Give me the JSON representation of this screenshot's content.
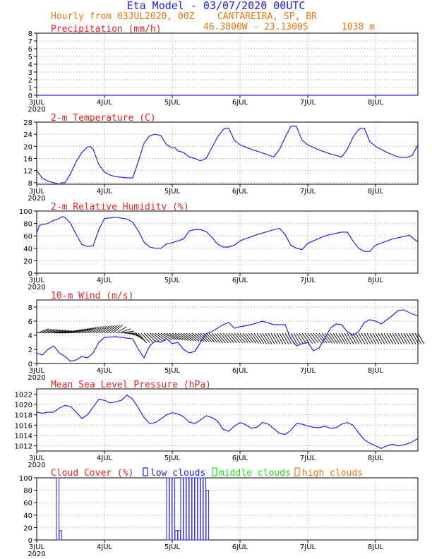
{
  "header": {
    "title": "Eta Model - 03/07/2020 00UTC",
    "subtitle": "Hourly from 03JUL2020, 00Z",
    "location": "CANTAREIRA, SP, BR",
    "coords": "46.3800W - 23.1300S",
    "elevation": "1038  m"
  },
  "colors": {
    "title": "#2020dd",
    "header": "#ee7711",
    "panel_title": "#ee2222",
    "series": "#2222ee",
    "wind": "#000000",
    "grid": "#999999",
    "low": "#2222ee",
    "middle": "#22dd22",
    "high": "#ee7711"
  },
  "x_axis": {
    "ticks": [
      {
        "hour": 0,
        "label": "3JUL",
        "year": "2020"
      },
      {
        "hour": 24,
        "label": "4JUL"
      },
      {
        "hour": 48,
        "label": "5JUL"
      },
      {
        "hour": 72,
        "label": "6JUL"
      },
      {
        "hour": 96,
        "label": "7JUL"
      },
      {
        "hour": 120,
        "label": "8JUL"
      }
    ],
    "range_hours": [
      0,
      135
    ]
  },
  "legend": {
    "cloud_title": "Cloud Cover (%)",
    "low": "low clouds",
    "middle": "middle clouds",
    "high": "high clouds"
  },
  "chart_data": [
    {
      "type": "line",
      "title": "Precipitation (mm/h)",
      "ylim": [
        0,
        8
      ],
      "yticks": [
        0,
        1,
        2,
        3,
        4,
        5,
        6,
        7,
        8
      ],
      "series": [
        {
          "name": "precipitation",
          "x": [
            0,
            135
          ],
          "values": [
            0,
            0
          ]
        }
      ]
    },
    {
      "type": "line",
      "title": "2-m Temperature (C)",
      "ylim": [
        7.5,
        28
      ],
      "yticks": [
        8,
        12,
        16,
        20,
        24,
        28
      ],
      "series": [
        {
          "name": "temperature",
          "x": [
            0,
            2,
            4,
            6,
            8,
            9,
            10,
            12,
            14,
            16,
            18,
            19,
            20,
            22,
            24,
            26,
            28,
            30,
            32,
            34,
            36,
            38,
            40,
            42,
            44,
            46,
            48,
            49,
            50,
            52,
            54,
            56,
            58,
            60,
            62,
            64,
            66,
            67,
            68,
            70,
            72,
            76,
            80,
            84,
            86,
            88,
            90,
            91,
            92,
            94,
            96,
            100,
            104,
            108,
            110,
            112,
            114,
            115,
            116,
            118,
            120,
            124,
            128,
            131,
            133,
            135
          ],
          "values": [
            12,
            9.5,
            8.5,
            8,
            7.5,
            8,
            8,
            11,
            15,
            18,
            19.8,
            19.9,
            19,
            14,
            11.5,
            10.5,
            10,
            9.8,
            9.6,
            9.6,
            15,
            21,
            23.5,
            24,
            23.5,
            20.5,
            19.5,
            19.5,
            18.5,
            18,
            16.5,
            16,
            15.2,
            16,
            19.5,
            23,
            25.5,
            26,
            26,
            22,
            20.5,
            19,
            17.8,
            16.5,
            19,
            23,
            26.5,
            26.8,
            26.5,
            22,
            20.5,
            18.8,
            17.5,
            16.5,
            19,
            23,
            25.5,
            26,
            26,
            21.5,
            20,
            18,
            16.5,
            16.3,
            17,
            20.5
          ]
        }
      ]
    },
    {
      "type": "line",
      "title": "2-m Relative Humidity (%)",
      "ylim": [
        0,
        100
      ],
      "yticks": [
        0,
        20,
        40,
        60,
        80,
        100
      ],
      "series": [
        {
          "name": "relative_humidity",
          "x": [
            0,
            1,
            2,
            4,
            6,
            8,
            9,
            10,
            12,
            14,
            16,
            18,
            20,
            22,
            24,
            28,
            32,
            34,
            36,
            38,
            40,
            42,
            44,
            46,
            48,
            52,
            54,
            56,
            58,
            60,
            62,
            64,
            66,
            68,
            70,
            72,
            78,
            84,
            86,
            88,
            90,
            92,
            94,
            96,
            102,
            108,
            110,
            112,
            114,
            116,
            118,
            120,
            126,
            132,
            135
          ],
          "values": [
            65,
            77,
            78,
            80,
            85,
            88,
            91,
            90,
            80,
            62,
            46,
            43,
            44,
            70,
            88,
            90,
            87,
            82,
            68,
            50,
            42,
            40,
            40,
            47,
            49,
            55,
            68,
            70,
            70,
            67,
            58,
            47,
            42,
            42,
            45,
            52,
            62,
            70,
            72,
            62,
            45,
            40,
            38,
            48,
            60,
            66,
            66,
            52,
            40,
            35,
            35,
            45,
            55,
            61,
            50
          ]
        }
      ]
    },
    {
      "type": "line",
      "title": "10-m Wind (m/s)",
      "ylim": [
        0,
        9
      ],
      "yticks": [
        0,
        2,
        4,
        6,
        8
      ],
      "series": [
        {
          "name": "wind_speed",
          "x": [
            0,
            2,
            4,
            6,
            8,
            10,
            12,
            14,
            16,
            18,
            20,
            22,
            24,
            28,
            32,
            34,
            36,
            38,
            40,
            42,
            44,
            46,
            48,
            50,
            52,
            54,
            56,
            58,
            60,
            62,
            64,
            66,
            68,
            70,
            72,
            76,
            80,
            84,
            86,
            88,
            90,
            92,
            94,
            96,
            98,
            100,
            102,
            104,
            106,
            108,
            110,
            112,
            114,
            116,
            118,
            120,
            122,
            124,
            126,
            128,
            130,
            132,
            135
          ],
          "values": [
            1.5,
            1.2,
            2,
            2.5,
            1.5,
            1,
            0.3,
            0.5,
            1,
            0.8,
            1.5,
            3,
            3.7,
            3.8,
            3.6,
            3.5,
            2,
            0.8,
            2.5,
            3.2,
            3,
            3.5,
            2.8,
            3,
            2,
            1.5,
            1.7,
            3,
            4.2,
            4.5,
            5,
            5.5,
            5.8,
            5,
            5.2,
            5.5,
            6,
            5.5,
            5.5,
            5.5,
            3.5,
            2.5,
            2.8,
            3,
            1.8,
            2.2,
            3.5,
            5,
            5.6,
            5.5,
            4.5,
            4,
            4.5,
            5.8,
            6.2,
            6,
            5.6,
            6.2,
            6.8,
            7.5,
            7.6,
            7.2,
            6.7
          ]
        }
      ]
    },
    {
      "type": "line",
      "title": "Mean Sea Level Pressure (hPa)",
      "ylim": [
        1011,
        1023
      ],
      "yticks": [
        1012,
        1014,
        1016,
        1018,
        1020,
        1022
      ],
      "series": [
        {
          "name": "mslp",
          "x": [
            0,
            2,
            4,
            6,
            8,
            10,
            12,
            14,
            16,
            18,
            20,
            22,
            24,
            26,
            28,
            30,
            32,
            34,
            36,
            38,
            40,
            42,
            44,
            46,
            48,
            50,
            52,
            54,
            56,
            58,
            60,
            62,
            64,
            66,
            68,
            70,
            72,
            74,
            76,
            78,
            80,
            82,
            84,
            86,
            88,
            90,
            92,
            94,
            96,
            98,
            100,
            102,
            104,
            106,
            108,
            110,
            112,
            114,
            116,
            118,
            120,
            122,
            124,
            126,
            128,
            130,
            132,
            134,
            135
          ],
          "values": [
            1018.5,
            1018.3,
            1018.5,
            1018.5,
            1019.3,
            1019.8,
            1019.6,
            1018.5,
            1017.3,
            1018,
            1019.5,
            1021,
            1020.8,
            1020.3,
            1020.5,
            1020.8,
            1021.8,
            1021,
            1019.3,
            1017.5,
            1016.3,
            1016.5,
            1017.2,
            1018,
            1018.4,
            1018.2,
            1017.6,
            1016.6,
            1016.3,
            1017,
            1017.8,
            1017.5,
            1016.8,
            1015.2,
            1014.8,
            1015.8,
            1016.5,
            1016.1,
            1015.4,
            1015.6,
            1016.5,
            1016.2,
            1015.3,
            1014.4,
            1014.2,
            1015,
            1016.3,
            1016.2,
            1015.8,
            1015.6,
            1015.5,
            1015.8,
            1015.4,
            1015.5,
            1016.2,
            1016.5,
            1016,
            1014.5,
            1013.2,
            1012.5,
            1012,
            1011.5,
            1012,
            1012.3,
            1012,
            1012.2,
            1012.5,
            1013.1,
            1013.4
          ]
        }
      ]
    },
    {
      "type": "bar",
      "title": "Cloud Cover (%)",
      "ylim": [
        0,
        100
      ],
      "yticks": [
        0,
        20,
        40,
        60,
        80,
        100
      ],
      "series": [
        {
          "name": "low clouds",
          "hours": [
            7,
            8,
            46,
            47,
            48,
            49,
            50,
            51,
            52,
            53,
            54,
            55,
            56,
            57,
            58,
            59,
            60
          ],
          "values": [
            100,
            15,
            100,
            100,
            100,
            15,
            15,
            100,
            100,
            100,
            100,
            100,
            100,
            100,
            100,
            100,
            80
          ]
        },
        {
          "name": "middle clouds",
          "hours": [],
          "values": []
        },
        {
          "name": "high clouds",
          "hours": [],
          "values": []
        }
      ]
    }
  ],
  "wind_barbs": {
    "description_hours": [
      0,
      9,
      18,
      27,
      36,
      45,
      54,
      63,
      72,
      81,
      90,
      99,
      108,
      117,
      126,
      135
    ],
    "directions_deg": [
      250,
      260,
      240,
      230,
      320,
      300,
      310,
      320,
      320,
      330,
      330,
      320,
      330,
      330,
      330,
      330
    ]
  }
}
